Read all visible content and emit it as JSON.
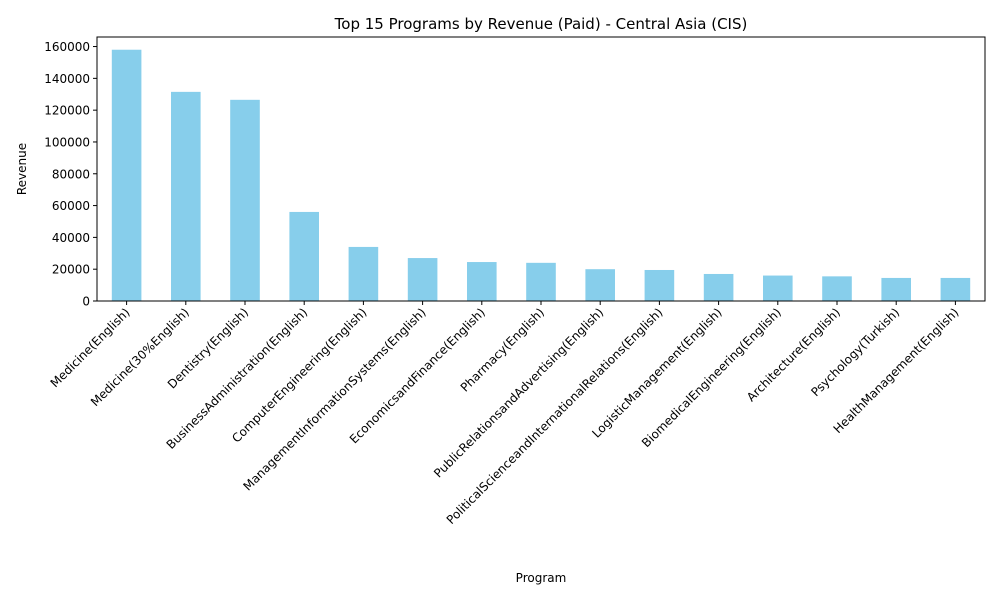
{
  "chart_data": {
    "type": "bar",
    "title": "Top 15 Programs by Revenue (Paid) - Central Asia (CIS)",
    "xlabel": "Program",
    "ylabel": "Revenue",
    "ylim": [
      0,
      166000
    ],
    "yticks": [
      0,
      20000,
      40000,
      60000,
      80000,
      100000,
      120000,
      140000,
      160000
    ],
    "grid": false,
    "bar_color": "#87ceeb",
    "categories": [
      "Medicine(English)",
      "Medicine(30%English)",
      "Dentistry(English)",
      "BusinessAdministration(English)",
      "ComputerEngineering(English)",
      "ManagementInformationSystems(English)",
      "EconomicsandFinance(English)",
      "Pharmacy(English)",
      "PublicRelationsandAdvertising(English)",
      "PoliticalScienceandInternationalRelations(English)",
      "LogisticManagement(English)",
      "BiomedicalEngineering(English)",
      "Architecture(English)",
      "Psychology(Turkish)",
      "HealthManagement(English)"
    ],
    "values": [
      158000,
      131500,
      126500,
      56000,
      34000,
      27000,
      24500,
      24000,
      20000,
      19500,
      17000,
      16000,
      15500,
      14500,
      14500
    ]
  }
}
